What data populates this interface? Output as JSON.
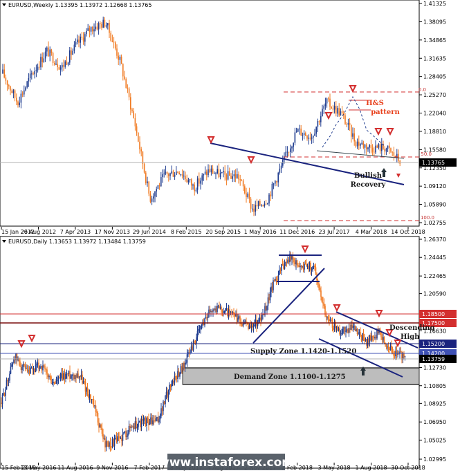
{
  "colors": {
    "bull": "#1f3c8f",
    "bear": "#f07a22",
    "trend": "#1a237e",
    "red": "#d32f2f",
    "supply": "#5c6bc0",
    "demand_fill": "#bdbdbd",
    "level_1_1850": "#d32f2f",
    "level_1_1750": "#7a0f0f",
    "level_1_1520": "#1a237e",
    "level_1_1420": "#3f51b5",
    "current": "#000000",
    "watermark_bg": "#4e5660"
  },
  "charts": [
    {
      "id": "weekly",
      "header": "EURUSD,Weekly  1.13395 1.13972 1.12668 1.13765",
      "yticks": [
        "1.41325",
        "1.38095",
        "1.34865",
        "1.31635",
        "1.28405",
        "1.25270",
        "1.22040",
        "1.18810",
        "1.15580",
        "1.12350",
        "1.09120",
        "1.05890",
        "1.02755"
      ],
      "current_price": "1.13765",
      "xticks": [
        "15 Jan 2012",
        "26 Aug 2012",
        "7 Apr 2013",
        "17 Nov 2013",
        "29 Jun 2014",
        "8 Feb 2015",
        "20 Sep 2015",
        "1 May 2016",
        "11 Dec 2016",
        "23 Jul 2017",
        "4 Mar 2018",
        "14 Oct 2018"
      ],
      "fib_labels": [
        "0.0",
        "50.0",
        "100.0"
      ],
      "annotations": {
        "hs_line1": "H&S",
        "hs_line2": "pattern",
        "br_line1": "Bullish",
        "br_line2": "Recovery"
      }
    },
    {
      "id": "daily",
      "header": "EURUSD,Daily  1.13653 1.13972 1.13484 1.13759",
      "yticks": [
        "1.26370",
        "1.24445",
        "1.22465",
        "1.20590",
        "1.18500",
        "1.17500",
        "1.16630",
        "1.15200",
        "1.14200",
        "1.13759",
        "1.12730",
        "1.10805",
        "1.08925",
        "1.06950",
        "1.05025",
        "1.02995"
      ],
      "levels": [
        "1.18500",
        "1.17500",
        "1.15200",
        "1.14200"
      ],
      "current_price": "1.13759",
      "xticks": [
        "15 Feb 2016",
        "13 May 2016",
        "11 Aug 2016",
        "9 Nov 2016",
        "7 Feb 2017",
        "8 May 2017",
        "4 Aug 2017",
        "2 Nov 2017",
        "2 Feb 2018",
        "3 May 2018",
        "1 Aug 2018",
        "30 Oct 2018"
      ],
      "annotations": {
        "desc_line1": "Descending",
        "desc_line2": "High",
        "supply": "Supply Zone 1.1420-1.1520",
        "demand": "Demand Zone 1.1100-1.1275"
      }
    }
  ],
  "watermark": "www.instaforex.com",
  "chart_data": [
    {
      "type": "candlestick",
      "title": "EURUSD,Weekly",
      "ohlc_last": {
        "open": 1.13395,
        "high": 1.13972,
        "low": 1.12668,
        "close": 1.13765
      },
      "ylim": [
        1.02755,
        1.41325
      ],
      "x": [
        "2012-01",
        "2012-05",
        "2012-09",
        "2013-01",
        "2013-05",
        "2013-09",
        "2014-01",
        "2014-05",
        "2014-09",
        "2015-01",
        "2015-03",
        "2015-06",
        "2015-09",
        "2015-12",
        "2016-03",
        "2016-06",
        "2016-09",
        "2016-12",
        "2017-03",
        "2017-06",
        "2017-09",
        "2017-12",
        "2018-02",
        "2018-04",
        "2018-06",
        "2018-08",
        "2018-10",
        "2018-11"
      ],
      "y": [
        1.29,
        1.24,
        1.29,
        1.33,
        1.3,
        1.34,
        1.37,
        1.38,
        1.31,
        1.2,
        1.07,
        1.11,
        1.12,
        1.09,
        1.12,
        1.11,
        1.11,
        1.05,
        1.07,
        1.13,
        1.19,
        1.18,
        1.24,
        1.22,
        1.17,
        1.16,
        1.16,
        1.137
      ],
      "fibonacci": {
        "0.0": 1.2555,
        "50.0": 1.147,
        "100.0": 1.034
      },
      "neckline": [
        [
          2015.4,
          1.17
        ],
        [
          2018.9,
          1.136
        ]
      ],
      "neckline2": [
        [
          2017.3,
          1.152
        ],
        [
          2018.9,
          1.142
        ]
      ],
      "markers_down": [
        2015.4,
        2016.0,
        2017.6,
        2018.1,
        2018.5,
        2018.7
      ],
      "markers_up": [
        2018.6
      ]
    },
    {
      "type": "candlestick",
      "title": "EURUSD,Daily",
      "ohlc_last": {
        "open": 1.13653,
        "high": 1.13972,
        "low": 1.13484,
        "close": 1.13759
      },
      "ylim": [
        1.02995,
        1.2637
      ],
      "x": [
        "2016-01",
        "2016-02",
        "2016-04",
        "2016-05",
        "2016-06",
        "2016-08",
        "2016-09",
        "2016-11",
        "2016-12",
        "2017-01",
        "2017-02",
        "2017-03",
        "2017-04",
        "2017-05",
        "2017-06",
        "2017-07",
        "2017-08",
        "2017-09",
        "2017-10",
        "2017-11",
        "2017-12",
        "2018-01",
        "2018-02",
        "2018-03",
        "2018-04",
        "2018-05",
        "2018-06",
        "2018-07",
        "2018-08",
        "2018-09",
        "2018-10",
        "2018-11"
      ],
      "y": [
        1.09,
        1.14,
        1.12,
        1.13,
        1.11,
        1.12,
        1.12,
        1.09,
        1.045,
        1.05,
        1.065,
        1.07,
        1.07,
        1.11,
        1.13,
        1.16,
        1.19,
        1.19,
        1.18,
        1.17,
        1.18,
        1.22,
        1.245,
        1.235,
        1.235,
        1.18,
        1.165,
        1.17,
        1.155,
        1.165,
        1.145,
        1.1376
      ],
      "levels": [
        1.185,
        1.175,
        1.152,
        1.142
      ],
      "supply_zone": [
        1.142,
        1.152
      ],
      "demand_zone": [
        1.11,
        1.1275
      ]
    }
  ]
}
